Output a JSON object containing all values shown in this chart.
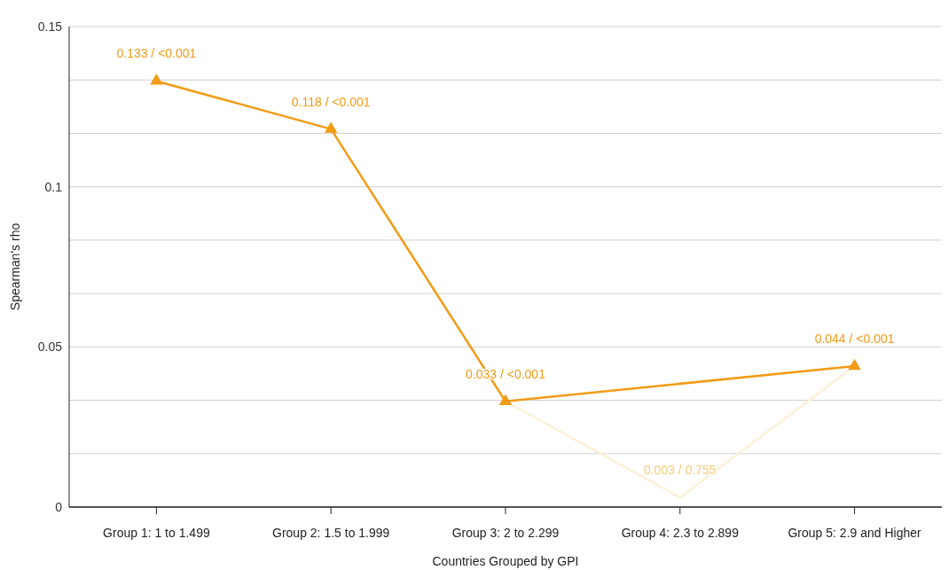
{
  "chart_data": {
    "type": "line",
    "xlabel": "Countries Grouped by GPI",
    "ylabel": "Spearman's rho",
    "categories": [
      "Group 1: 1 to 1.499",
      "Group 2: 1.5 to 1.999",
      "Group 3: 2 to 2.299",
      "Group 4: 2.3 to 2.899",
      "Group 5: 2.9 and Higher"
    ],
    "series": [
      {
        "color": "#fdf0d8",
        "marker": "none",
        "values": [
          null,
          null,
          0.033,
          0.003,
          0.044
        ],
        "value_labels": [
          null,
          null,
          null,
          "0.003 / 0.755",
          null
        ]
      },
      {
        "color": "#f29b16",
        "marker": "triangle",
        "values": [
          0.133,
          0.118,
          0.033,
          null,
          0.044
        ],
        "value_labels": [
          "0.133 / <0.001",
          "0.118 / <0.001",
          "0.033 / <0.001",
          null,
          "0.044 / <0.001"
        ]
      }
    ],
    "ylim": [
      0,
      0.15
    ],
    "yticks": [
      0,
      {
        "value": 0.01667,
        "label": null
      },
      {
        "value": 0.03333,
        "label": null
      },
      0.05,
      {
        "value": 0.06667,
        "label": null
      },
      {
        "value": 0.08333,
        "label": null
      },
      0.1,
      {
        "value": 0.11667,
        "label": null
      },
      {
        "value": 0.13333,
        "label": null
      },
      0.15
    ],
    "grid": "y"
  }
}
